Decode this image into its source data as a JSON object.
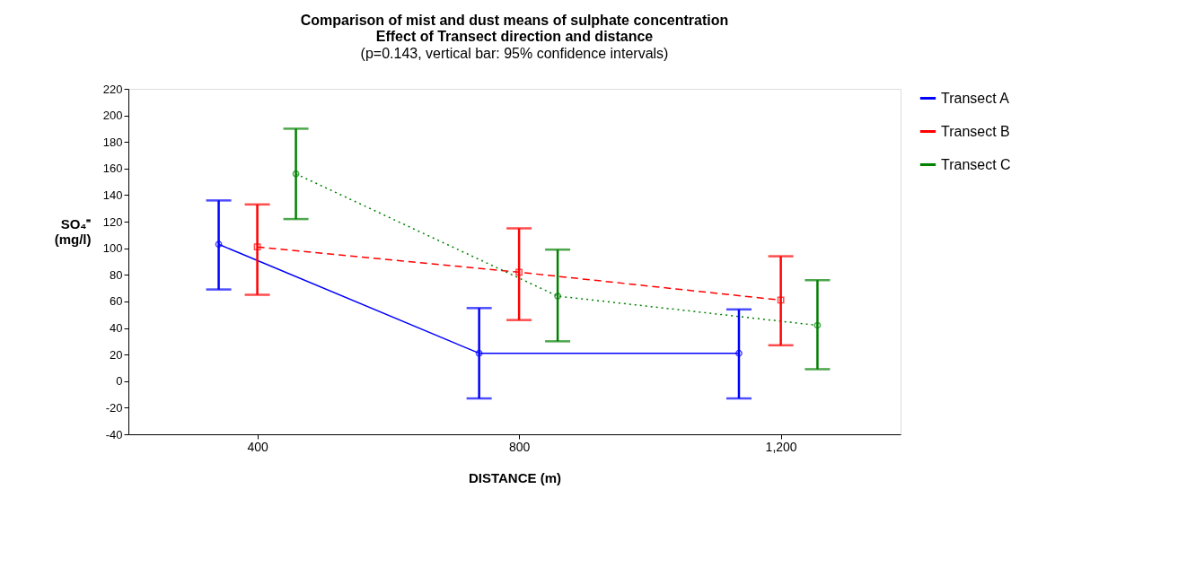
{
  "chart_data": {
    "type": "line",
    "title": "Comparison of mist and dust means of sulphate concentration\nEffect of Transect direction and distance",
    "subtitle": "(p=0.143, vertical bar: 95% confidence intervals)",
    "xlabel": "DISTANCE   (m)",
    "ylabel": "SO₄⁼\n(mg/l)",
    "xlim": [
      203,
      1383
    ],
    "xticks": [
      400,
      800,
      {
        "value": 1200,
        "label": "1,200"
      }
    ],
    "ylim": [
      -40,
      220
    ],
    "yticks": [
      -40,
      -20,
      0,
      20,
      40,
      60,
      80,
      100,
      120,
      140,
      160,
      180,
      200,
      220
    ],
    "grid": false,
    "legend": "right",
    "series": [
      {
        "name": "Transect A",
        "color": "#0000ff",
        "marker": "circle",
        "line_style": "solid",
        "x": [
          341,
          739,
          1136
        ],
        "values": [
          103,
          21,
          21
        ],
        "errors": [
          [
            69,
            136
          ],
          [
            -13,
            55
          ],
          [
            -13,
            54
          ]
        ]
      },
      {
        "name": "Transect B",
        "color": "#ff0000",
        "marker": "square",
        "line_style": "dashed",
        "x": [
          400,
          800,
          1200
        ],
        "values": [
          101,
          82,
          61
        ],
        "errors": [
          [
            65,
            133
          ],
          [
            46,
            115
          ],
          [
            27,
            94
          ]
        ]
      },
      {
        "name": "Transect C",
        "color": "#008000",
        "marker": "circle",
        "line_style": "dotted",
        "x": [
          459,
          859,
          1256
        ],
        "values": [
          156,
          64,
          42
        ],
        "errors": [
          [
            122,
            190
          ],
          [
            30,
            99
          ],
          [
            9,
            76
          ]
        ]
      }
    ]
  }
}
